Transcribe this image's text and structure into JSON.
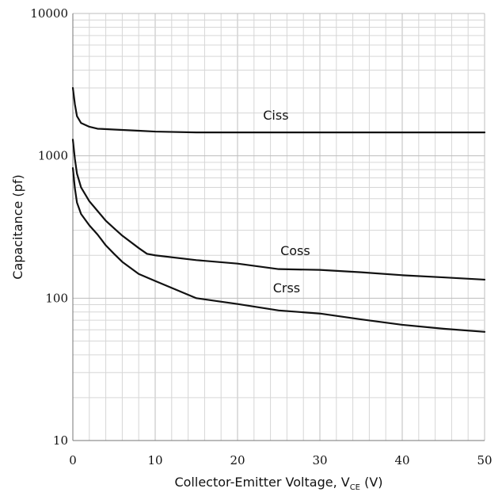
{
  "chart_data": {
    "type": "line",
    "title": "",
    "xlabel": "Collector-Emitter Voltage, V",
    "xlabel_subscript": "CE",
    "xlabel_suffix": " (V)",
    "ylabel": "Capacitance (pf)",
    "xlim": [
      0,
      50
    ],
    "ylim": [
      10,
      10000
    ],
    "yscale": "log",
    "grid": true,
    "legend": "none",
    "x_ticks": [
      0,
      10,
      20,
      30,
      40,
      50
    ],
    "y_ticks": [
      10,
      100,
      1000,
      10000
    ],
    "series": [
      {
        "name": "Ciss",
        "x": [
          0,
          0.25,
          0.5,
          1,
          2,
          3,
          5,
          8,
          10,
          15,
          20,
          25,
          30,
          35,
          40,
          45,
          50
        ],
        "y": [
          3000,
          2300,
          1900,
          1700,
          1600,
          1550,
          1530,
          1500,
          1480,
          1460,
          1460,
          1460,
          1460,
          1460,
          1460,
          1460,
          1460
        ]
      },
      {
        "name": "Coss",
        "x": [
          0,
          0.25,
          0.5,
          1,
          2,
          3,
          4,
          5,
          6,
          8,
          9,
          10,
          15,
          20,
          25,
          30,
          35,
          40,
          45,
          50
        ],
        "y": [
          1300,
          950,
          750,
          600,
          480,
          410,
          350,
          310,
          275,
          225,
          205,
          200,
          185,
          175,
          160,
          158,
          152,
          145,
          140,
          135
        ]
      },
      {
        "name": "Crss",
        "x": [
          0,
          0.25,
          0.5,
          1,
          2,
          3,
          4,
          5,
          6,
          8,
          10,
          15,
          20,
          25,
          30,
          35,
          40,
          45,
          50
        ],
        "y": [
          820,
          590,
          470,
          390,
          325,
          280,
          235,
          205,
          180,
          148,
          132,
          100,
          91,
          82,
          78,
          71,
          65,
          61,
          58
        ]
      }
    ],
    "annotations": [
      {
        "text": "Ciss",
        "x": 23.1,
        "y": 1800
      },
      {
        "text": "Coss",
        "x": 25.2,
        "y": 200
      },
      {
        "text": "Crss",
        "x": 24.3,
        "y": 110
      }
    ]
  }
}
